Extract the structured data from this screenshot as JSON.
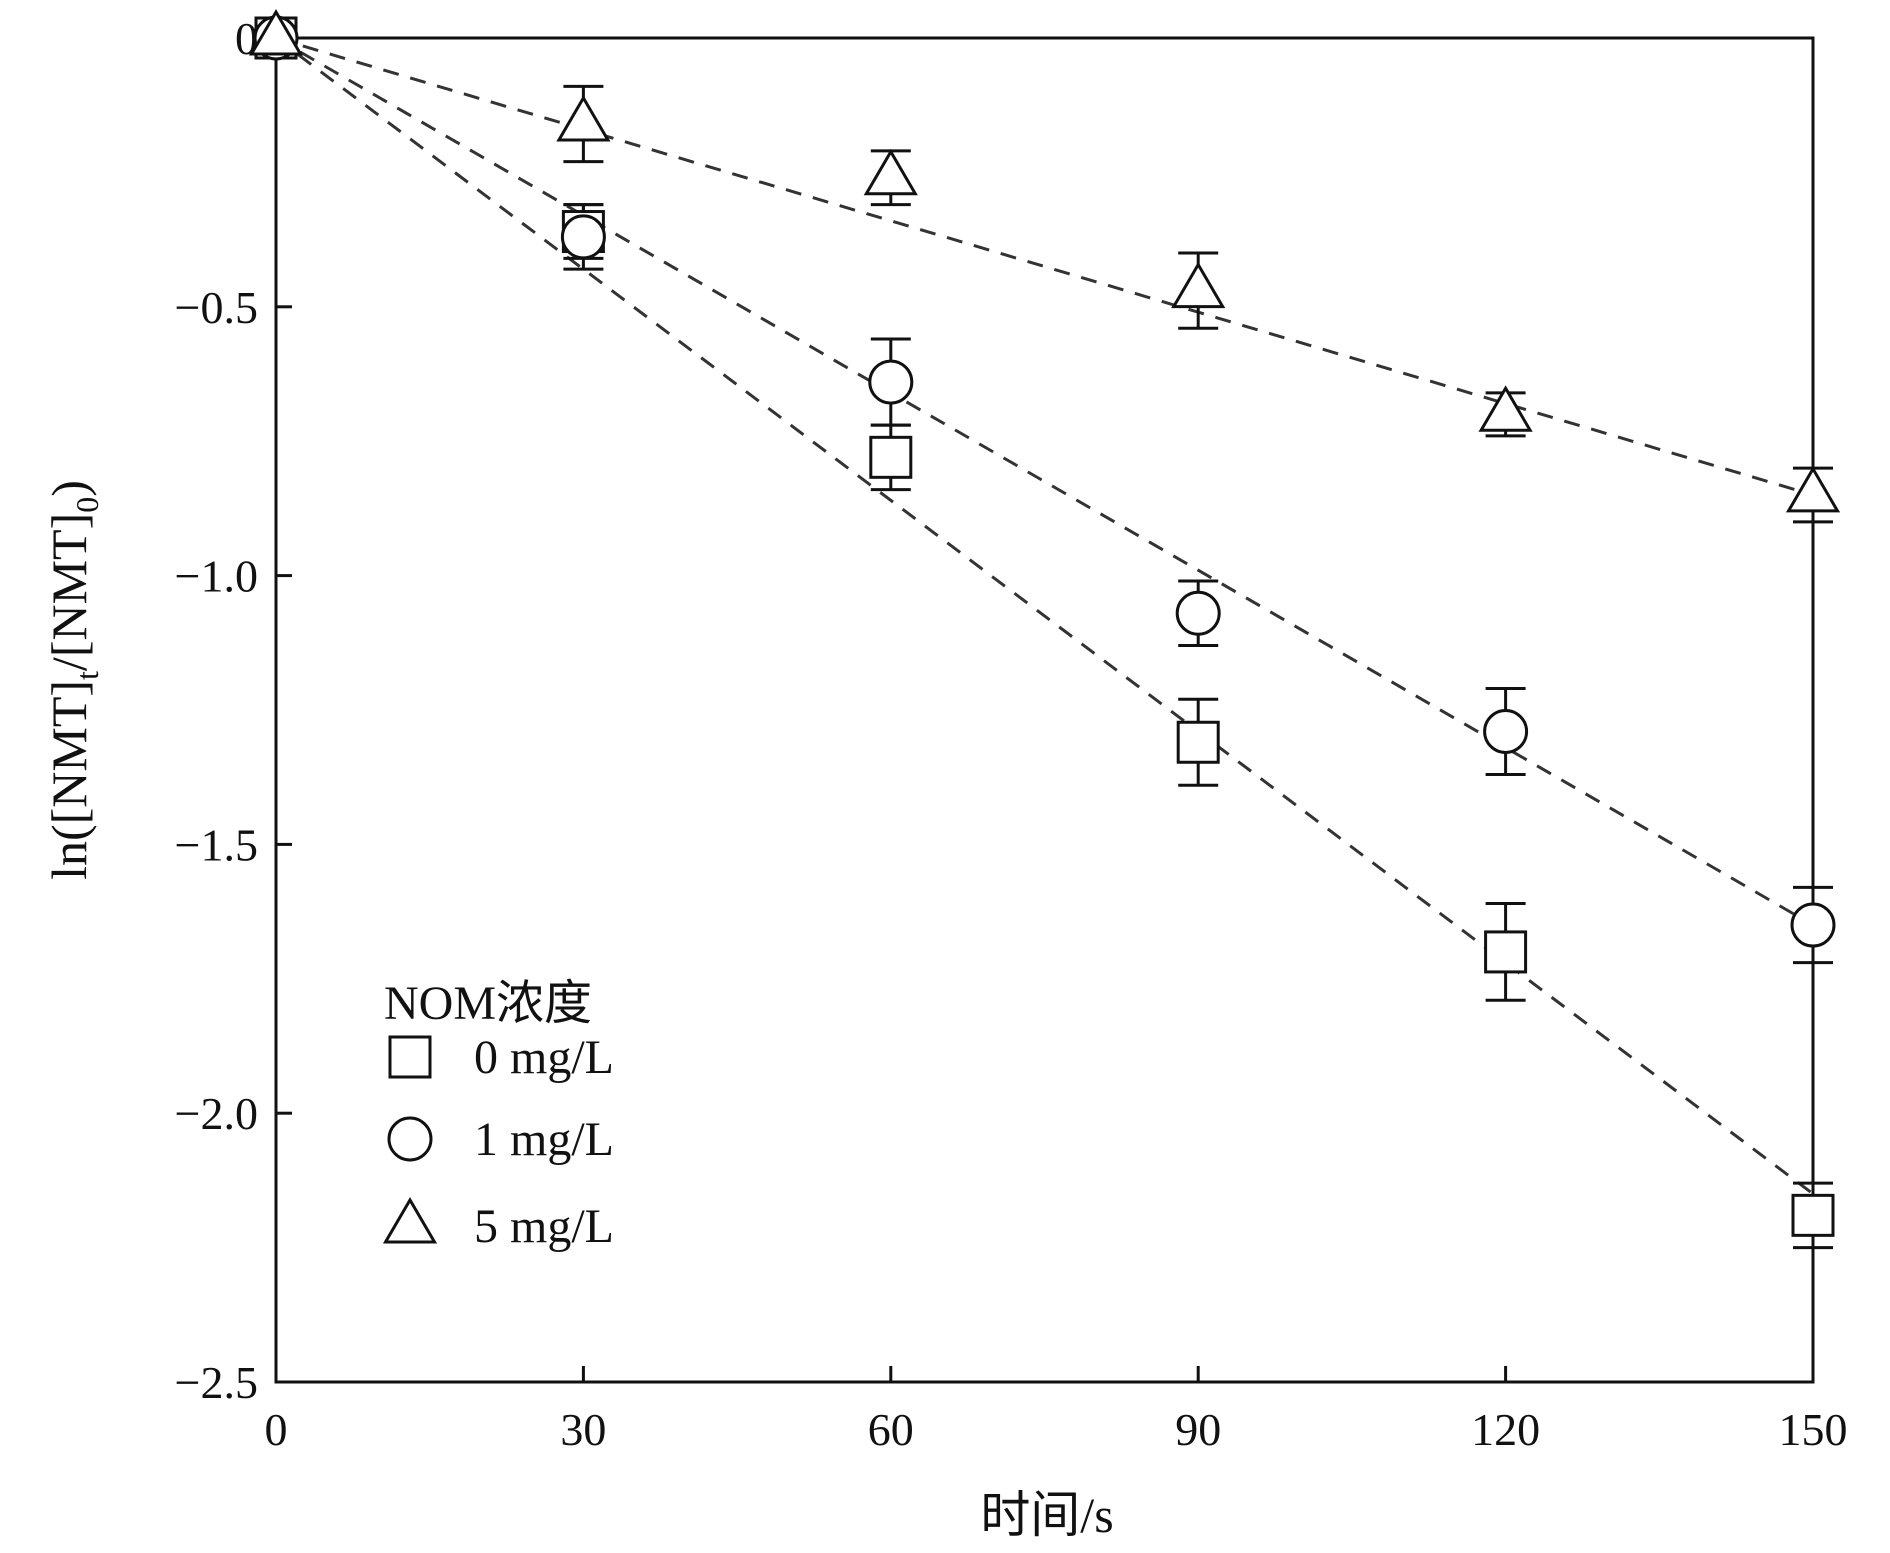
{
  "chart_data": {
    "type": "scatter",
    "title": "",
    "xlabel": "时间/s",
    "ylabel": {
      "main": "ln([NMT]",
      "sub_t": "t",
      "middle": "/[NMT]",
      "sub_0": "0",
      "end": ")"
    },
    "xlim": [
      0,
      150
    ],
    "ylim": [
      -2.5,
      0
    ],
    "xticks": [
      0,
      30,
      60,
      90,
      120,
      150
    ],
    "xtick_labels": [
      "0",
      "30",
      "60",
      "90",
      "120",
      "150"
    ],
    "yticks": [
      0,
      -0.5,
      -1.0,
      -1.5,
      -2.0,
      -2.5
    ],
    "ytick_labels": [
      "0",
      "−0.5",
      "−1.0",
      "−1.5",
      "−2.0",
      "−2.5"
    ],
    "grid": false,
    "legend": {
      "title": "NOM浓度",
      "placement": "bottom-left"
    },
    "series": [
      {
        "name": "0 mg/L",
        "marker": "square",
        "x": [
          0,
          30,
          60,
          90,
          120,
          150
        ],
        "y": [
          0,
          -0.36,
          -0.78,
          -1.31,
          -1.7,
          -2.19
        ],
        "error": [
          0,
          0.05,
          0.06,
          0.08,
          0.09,
          0.06
        ],
        "fit": [
          [
            0,
            0
          ],
          [
            150,
            -2.15
          ]
        ]
      },
      {
        "name": "1 mg/L",
        "marker": "circle",
        "x": [
          0,
          30,
          60,
          90,
          120,
          150
        ],
        "y": [
          0,
          -0.37,
          -0.64,
          -1.07,
          -1.29,
          -1.65
        ],
        "error": [
          0,
          0.06,
          0.08,
          0.06,
          0.08,
          0.07
        ],
        "fit": [
          [
            0,
            0
          ],
          [
            150,
            -1.65
          ]
        ]
      },
      {
        "name": "5 mg/L",
        "marker": "triangle",
        "x": [
          0,
          30,
          60,
          90,
          120,
          150
        ],
        "y": [
          0,
          -0.16,
          -0.26,
          -0.47,
          -0.7,
          -0.85
        ],
        "error": [
          0,
          0.07,
          0.05,
          0.07,
          0.04,
          0.05
        ],
        "fit": [
          [
            0,
            0
          ],
          [
            150,
            -0.85
          ]
        ]
      }
    ]
  }
}
